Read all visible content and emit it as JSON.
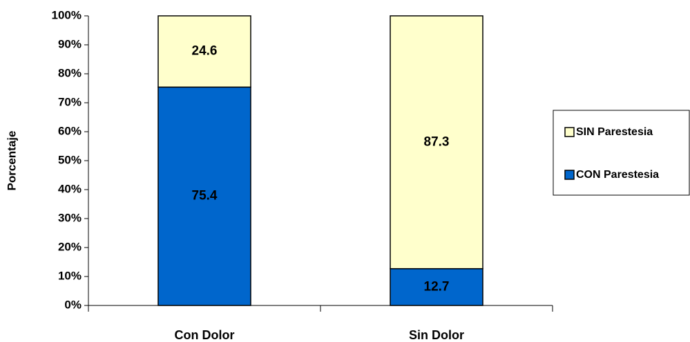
{
  "chart_data": {
    "type": "stacked_bar",
    "ylabel": "Porcentaje",
    "categories": [
      "Con Dolor",
      "Sin Dolor"
    ],
    "series": [
      {
        "name": "CON Parestesia",
        "color": "#0066cc",
        "values": [
          75.4,
          12.7
        ]
      },
      {
        "name": "SIN Parestesia",
        "color": "#ffffcc",
        "values": [
          24.6,
          87.3
        ]
      }
    ],
    "ylim": [
      0,
      100
    ],
    "yticks": [
      {
        "value": 0,
        "label": "0%"
      },
      {
        "value": 10,
        "label": "10%"
      },
      {
        "value": 20,
        "label": "20%"
      },
      {
        "value": 30,
        "label": "30%"
      },
      {
        "value": 40,
        "label": "40%"
      },
      {
        "value": 50,
        "label": "50%"
      },
      {
        "value": 60,
        "label": "60%"
      },
      {
        "value": 70,
        "label": "70%"
      },
      {
        "value": 80,
        "label": "80%"
      },
      {
        "value": 90,
        "label": "90%"
      },
      {
        "value": 100,
        "label": "100%"
      }
    ],
    "legend": "right"
  }
}
